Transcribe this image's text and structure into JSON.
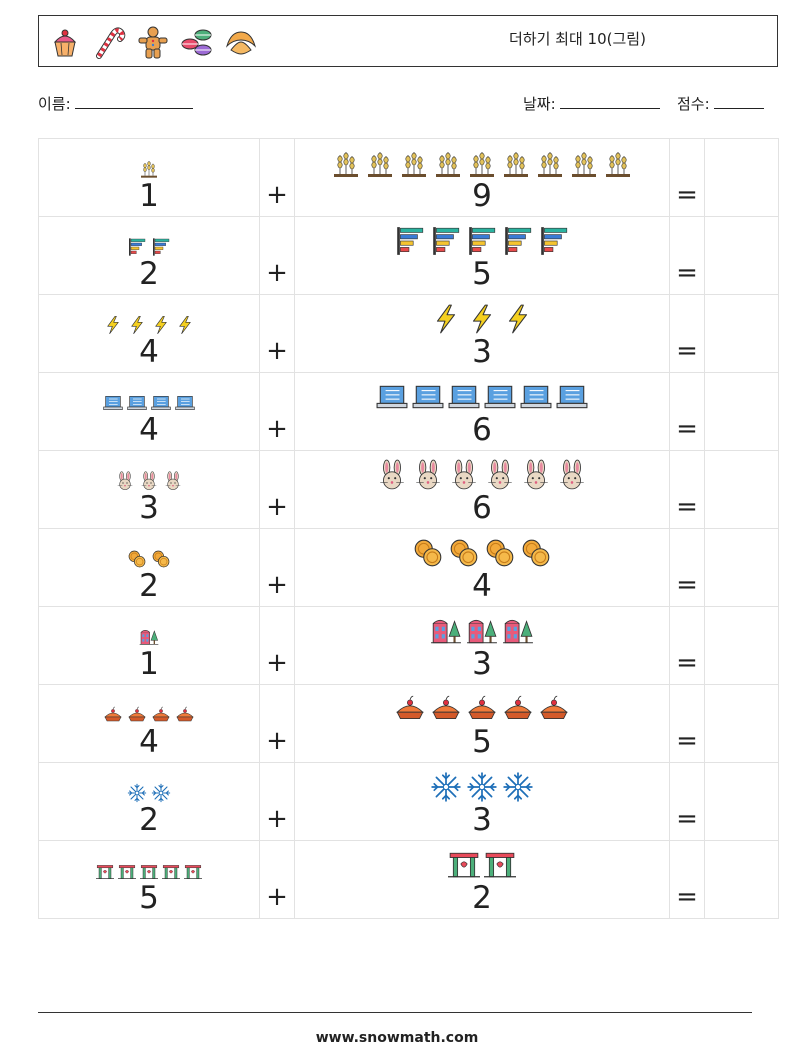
{
  "header": {
    "title": "더하기 최대 10(그림)",
    "icons": [
      "cupcake-icon",
      "candy-cane-icon",
      "gingerbread-man-icon",
      "macarons-icon",
      "croissant-icon"
    ]
  },
  "fields": {
    "name_label": "이름:",
    "date_label": "날짜:",
    "score_label": "점수:"
  },
  "operators": {
    "plus": "+",
    "equals": "="
  },
  "problems": [
    {
      "a": "1",
      "b": "9",
      "icon": "wheat-icon"
    },
    {
      "a": "2",
      "b": "5",
      "icon": "bar-chart-icon"
    },
    {
      "a": "4",
      "b": "3",
      "icon": "lightning-icon"
    },
    {
      "a": "4",
      "b": "6",
      "icon": "laptop-icon"
    },
    {
      "a": "3",
      "b": "6",
      "icon": "bunny-icon"
    },
    {
      "a": "2",
      "b": "4",
      "icon": "coins-icon"
    },
    {
      "a": "1",
      "b": "3",
      "icon": "building-tree-icon"
    },
    {
      "a": "4",
      "b": "5",
      "icon": "pie-icon"
    },
    {
      "a": "2",
      "b": "3",
      "icon": "snowflake-icon"
    },
    {
      "a": "5",
      "b": "2",
      "icon": "gate-icon"
    }
  ],
  "footer": {
    "site": "www.snowmath.com"
  }
}
